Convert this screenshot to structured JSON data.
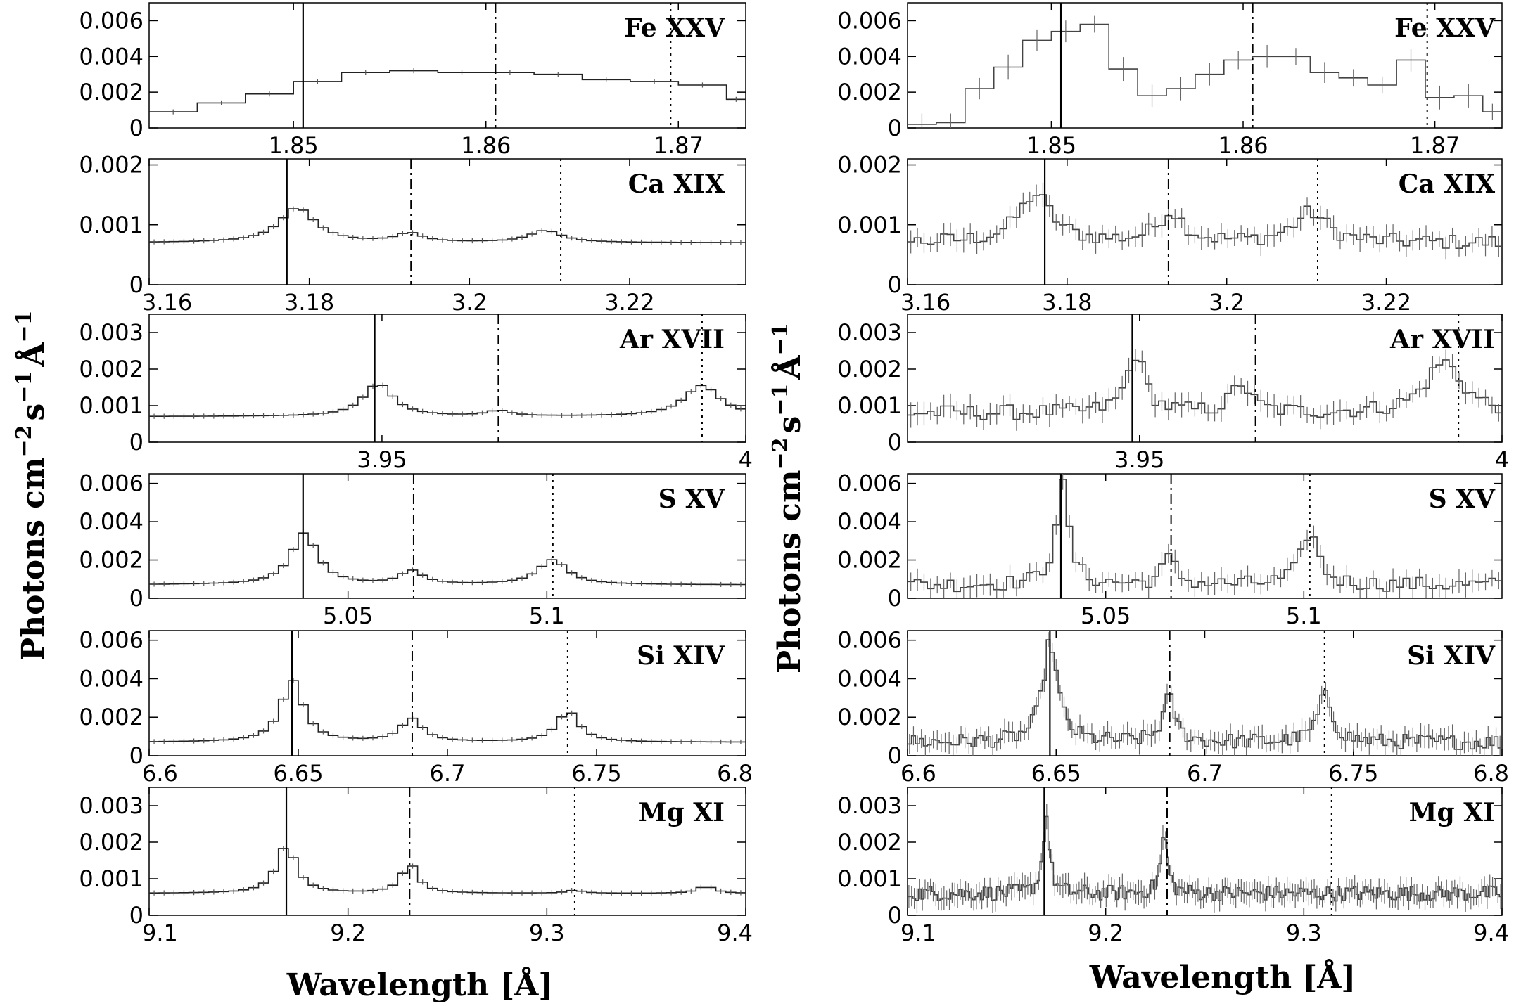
{
  "figure": {
    "ylabel_text": "Photons cm",
    "ylabel_exp1": "−2",
    "ylabel_s": "s",
    "ylabel_exp2": "−1",
    "ylabel_A": "Å",
    "ylabel_exp3": "−1",
    "xlabel": "Wavelength [Å]"
  },
  "chart_data": [
    {
      "column": "left",
      "type": "line",
      "style": "histogram",
      "ion": "Fe XXV",
      "xlim": [
        1.8425,
        1.8735
      ],
      "ylim": [
        0,
        0.007
      ],
      "yticks": [
        {
          "v": 0,
          "t": "0"
        },
        {
          "v": 0.002,
          "t": "0.002"
        },
        {
          "v": 0.004,
          "t": "0.004"
        },
        {
          "v": 0.006,
          "t": "0.006"
        }
      ],
      "xticks": [
        {
          "v": 1.85,
          "t": "1.85"
        },
        {
          "v": 1.86,
          "t": "1.86"
        },
        {
          "v": 1.87,
          "t": "1.87"
        }
      ],
      "xtick_pos": "below",
      "lines": {
        "solid": 1.8505,
        "dashdot": 1.8605,
        "dotted": 1.8696
      },
      "x": [
        1.8425,
        1.845,
        1.8475,
        1.85,
        1.8525,
        1.855,
        1.8575,
        1.86,
        1.8625,
        1.865,
        1.8675,
        1.87,
        1.8725
      ],
      "y": [
        0.0009,
        0.0014,
        0.0019,
        0.0026,
        0.0031,
        0.0032,
        0.0031,
        0.0031,
        0.003,
        0.0027,
        0.0026,
        0.0024,
        0.0016
      ],
      "noisy": false
    },
    {
      "column": "left",
      "type": "line",
      "style": "histogram",
      "ion": "Ca XIX",
      "xlim": [
        3.16,
        3.2345
      ],
      "ylim": [
        0,
        0.0021
      ],
      "yticks": [
        {
          "v": 0,
          "t": "0"
        },
        {
          "v": 0.001,
          "t": "0.001"
        },
        {
          "v": 0.002,
          "t": "0.002"
        }
      ],
      "xticks": [
        {
          "v": 3.16,
          "t": "3.16"
        },
        {
          "v": 3.18,
          "t": "3.18"
        },
        {
          "v": 3.2,
          "t": "3.2"
        },
        {
          "v": 3.22,
          "t": "3.22"
        }
      ],
      "xtick_pos": "below",
      "lines": {
        "solid": 3.1772,
        "dashdot": 3.1927,
        "dotted": 3.2114
      },
      "peaks": [
        {
          "c": 3.1785,
          "a": 0.00058,
          "w": 0.0055
        },
        {
          "c": 3.1925,
          "a": 0.00015,
          "w": 0.004
        },
        {
          "c": 3.2095,
          "a": 0.0002,
          "w": 0.005
        }
      ],
      "base": 0.0007,
      "noisy": false
    },
    {
      "column": "left",
      "type": "line",
      "style": "histogram",
      "ion": "Ar XVII",
      "xlim": [
        3.918,
        4.0
      ],
      "ylim": [
        0,
        0.0035
      ],
      "yticks": [
        {
          "v": 0,
          "t": "0"
        },
        {
          "v": 0.001,
          "t": "0.001"
        },
        {
          "v": 0.002,
          "t": "0.002"
        },
        {
          "v": 0.003,
          "t": "0.003"
        }
      ],
      "xticks": [
        {
          "v": 3.95,
          "t": "3.95"
        },
        {
          "v": 4.0,
          "t": "4"
        }
      ],
      "xtick_pos": "below",
      "lines": {
        "solid": 3.949,
        "dashdot": 3.966,
        "dotted": 3.994
      },
      "peaks": [
        {
          "c": 3.9495,
          "a": 0.0009,
          "w": 0.005
        },
        {
          "c": 3.966,
          "a": 0.00015,
          "w": 0.004
        },
        {
          "c": 3.994,
          "a": 0.00085,
          "w": 0.006
        }
      ],
      "base": 0.0007,
      "noisy": false
    },
    {
      "column": "left",
      "type": "line",
      "style": "histogram",
      "ion": "S XV",
      "xlim": [
        5.0,
        5.15
      ],
      "ylim": [
        0,
        0.0065
      ],
      "yticks": [
        {
          "v": 0,
          "t": "0"
        },
        {
          "v": 0.002,
          "t": "0.002"
        },
        {
          "v": 0.004,
          "t": "0.004"
        },
        {
          "v": 0.006,
          "t": "0.006"
        }
      ],
      "xticks": [
        {
          "v": 5.05,
          "t": "5.05"
        },
        {
          "v": 5.1,
          "t": "5.1"
        }
      ],
      "xtick_pos": "below",
      "lines": {
        "solid": 5.0387,
        "dashdot": 5.0665,
        "dotted": 5.1015
      },
      "peaks": [
        {
          "c": 5.039,
          "a": 0.0027,
          "w": 0.008
        },
        {
          "c": 5.066,
          "a": 0.0007,
          "w": 0.007
        },
        {
          "c": 5.1015,
          "a": 0.0013,
          "w": 0.009
        }
      ],
      "base": 0.0007,
      "noisy": false
    },
    {
      "column": "left",
      "type": "line",
      "style": "histogram",
      "ion": "Si XIV",
      "xlim": [
        6.6,
        6.8
      ],
      "ylim": [
        0,
        0.0065
      ],
      "yticks": [
        {
          "v": 0,
          "t": "0"
        },
        {
          "v": 0.002,
          "t": "0.002"
        },
        {
          "v": 0.004,
          "t": "0.004"
        },
        {
          "v": 0.006,
          "t": "0.006"
        }
      ],
      "xticks": [
        {
          "v": 6.6,
          "t": "6.6"
        },
        {
          "v": 6.65,
          "t": "6.65"
        },
        {
          "v": 6.7,
          "t": "6.7"
        },
        {
          "v": 6.75,
          "t": "6.75"
        },
        {
          "v": 6.8,
          "t": "6.8"
        }
      ],
      "xtick_pos": "below",
      "lines": {
        "solid": 6.6479,
        "dashdot": 6.6882,
        "dotted": 6.7403
      },
      "peaks": [
        {
          "c": 6.648,
          "a": 0.0032,
          "w": 0.009
        },
        {
          "c": 6.688,
          "a": 0.0012,
          "w": 0.009
        },
        {
          "c": 6.7405,
          "a": 0.0016,
          "w": 0.009
        }
      ],
      "base": 0.0007,
      "noisy": false
    },
    {
      "column": "left",
      "type": "line",
      "style": "histogram",
      "ion": "Mg XI",
      "xlim": [
        9.1,
        9.4
      ],
      "ylim": [
        0,
        0.0035
      ],
      "yticks": [
        {
          "v": 0,
          "t": "0"
        },
        {
          "v": 0.001,
          "t": "0.001"
        },
        {
          "v": 0.002,
          "t": "0.002"
        },
        {
          "v": 0.003,
          "t": "0.003"
        }
      ],
      "xticks": [
        {
          "v": 9.1,
          "t": "9.1"
        },
        {
          "v": 9.2,
          "t": "9.2"
        },
        {
          "v": 9.3,
          "t": "9.3"
        },
        {
          "v": 9.4,
          "t": "9.4"
        }
      ],
      "xtick_pos": "below",
      "lines": {
        "solid": 9.169,
        "dashdot": 9.231,
        "dotted": 9.314
      },
      "peaks": [
        {
          "c": 9.169,
          "a": 0.0013,
          "w": 0.012
        },
        {
          "c": 9.231,
          "a": 0.0008,
          "w": 0.01
        },
        {
          "c": 9.314,
          "a": 8e-05,
          "w": 0.01
        },
        {
          "c": 9.38,
          "a": 0.0002,
          "w": 0.01
        }
      ],
      "base": 0.0006,
      "noisy": false
    },
    {
      "column": "right",
      "type": "line",
      "style": "histogram",
      "ion": "Fe XXV",
      "xlim": [
        1.8425,
        1.8735
      ],
      "ylim": [
        0,
        0.007
      ],
      "yticks": [
        {
          "v": 0,
          "t": "0"
        },
        {
          "v": 0.002,
          "t": "0.002"
        },
        {
          "v": 0.004,
          "t": "0.004"
        },
        {
          "v": 0.006,
          "t": "0.006"
        }
      ],
      "xticks": [
        {
          "v": 1.85,
          "t": "1.85"
        },
        {
          "v": 1.86,
          "t": "1.86"
        },
        {
          "v": 1.87,
          "t": "1.87"
        }
      ],
      "xtick_pos": "below",
      "lines": {
        "solid": 1.8505,
        "dashdot": 1.8605,
        "dotted": 1.8696
      },
      "x": [
        1.8425,
        1.844,
        1.8455,
        1.847,
        1.8485,
        1.85,
        1.8515,
        1.853,
        1.8545,
        1.856,
        1.8575,
        1.859,
        1.8605,
        1.862,
        1.8635,
        1.865,
        1.8665,
        1.868,
        1.8695,
        1.871,
        1.8725
      ],
      "y": [
        0.0002,
        0.0003,
        0.0022,
        0.0034,
        0.0049,
        0.0054,
        0.0058,
        0.0033,
        0.0018,
        0.0022,
        0.003,
        0.0038,
        0.004,
        0.004,
        0.0031,
        0.0028,
        0.0024,
        0.0038,
        0.0017,
        0.0018,
        0.0009
      ],
      "noisy": true
    },
    {
      "column": "right",
      "type": "line",
      "style": "histogram",
      "ion": "Ca XIX",
      "xlim": [
        3.16,
        3.2345
      ],
      "ylim": [
        0,
        0.0021
      ],
      "yticks": [
        {
          "v": 0,
          "t": "0"
        },
        {
          "v": 0.001,
          "t": "0.001"
        },
        {
          "v": 0.002,
          "t": "0.002"
        }
      ],
      "xticks": [
        {
          "v": 3.16,
          "t": "3.16"
        },
        {
          "v": 3.18,
          "t": "3.18"
        },
        {
          "v": 3.2,
          "t": "3.2"
        },
        {
          "v": 3.22,
          "t": "3.22"
        }
      ],
      "xtick_pos": "below",
      "lines": {
        "solid": 3.1772,
        "dashdot": 3.1927,
        "dotted": 3.2114
      },
      "peaks": [
        {
          "c": 3.176,
          "a": 0.0008,
          "w": 0.005
        },
        {
          "c": 3.193,
          "a": 0.0005,
          "w": 0.004
        },
        {
          "c": 3.2105,
          "a": 0.0005,
          "w": 0.005
        }
      ],
      "base": 0.0007,
      "noisy": true
    },
    {
      "column": "right",
      "type": "line",
      "style": "histogram",
      "ion": "Ar XVII",
      "xlim": [
        3.918,
        4.0
      ],
      "ylim": [
        0,
        0.0035
      ],
      "yticks": [
        {
          "v": 0,
          "t": "0"
        },
        {
          "v": 0.001,
          "t": "0.001"
        },
        {
          "v": 0.002,
          "t": "0.002"
        },
        {
          "v": 0.003,
          "t": "0.003"
        }
      ],
      "xticks": [
        {
          "v": 3.95,
          "t": "3.95"
        },
        {
          "v": 4.0,
          "t": "4"
        }
      ],
      "xtick_pos": "below",
      "lines": {
        "solid": 3.949,
        "dashdot": 3.966,
        "dotted": 3.994
      },
      "peaks": [
        {
          "c": 3.9495,
          "a": 0.0016,
          "w": 0.003
        },
        {
          "c": 3.964,
          "a": 0.0008,
          "w": 0.003
        },
        {
          "c": 3.992,
          "a": 0.0014,
          "w": 0.006
        }
      ],
      "base": 0.0008,
      "noisy": true
    },
    {
      "column": "right",
      "type": "line",
      "style": "histogram",
      "ion": "S XV",
      "xlim": [
        5.0,
        5.15
      ],
      "ylim": [
        0,
        0.0065
      ],
      "yticks": [
        {
          "v": 0,
          "t": "0"
        },
        {
          "v": 0.002,
          "t": "0.002"
        },
        {
          "v": 0.004,
          "t": "0.004"
        },
        {
          "v": 0.006,
          "t": "0.006"
        }
      ],
      "xticks": [
        {
          "v": 5.05,
          "t": "5.05"
        },
        {
          "v": 5.1,
          "t": "5.1"
        }
      ],
      "xtick_pos": "below",
      "lines": {
        "solid": 5.0387,
        "dashdot": 5.0665,
        "dotted": 5.1015
      },
      "peaks": [
        {
          "c": 5.039,
          "a": 0.0052,
          "w": 0.004
        },
        {
          "c": 5.066,
          "a": 0.0014,
          "w": 0.004
        },
        {
          "c": 5.1015,
          "a": 0.0028,
          "w": 0.005
        }
      ],
      "base": 0.0007,
      "noisy": true
    },
    {
      "column": "right",
      "type": "line",
      "style": "histogram",
      "ion": "Si XIV",
      "xlim": [
        6.6,
        6.8
      ],
      "ylim": [
        0,
        0.0065
      ],
      "yticks": [
        {
          "v": 0,
          "t": "0"
        },
        {
          "v": 0.002,
          "t": "0.002"
        },
        {
          "v": 0.004,
          "t": "0.004"
        },
        {
          "v": 0.006,
          "t": "0.006"
        }
      ],
      "xticks": [
        {
          "v": 6.6,
          "t": "6.6"
        },
        {
          "v": 6.65,
          "t": "6.65"
        },
        {
          "v": 6.7,
          "t": "6.7"
        },
        {
          "v": 6.75,
          "t": "6.75"
        },
        {
          "v": 6.8,
          "t": "6.8"
        }
      ],
      "xtick_pos": "below",
      "lines": {
        "solid": 6.6479,
        "dashdot": 6.6882,
        "dotted": 6.7403
      },
      "peaks": [
        {
          "c": 6.648,
          "a": 0.0052,
          "w": 0.006
        },
        {
          "c": 6.688,
          "a": 0.0023,
          "w": 0.005
        },
        {
          "c": 6.7405,
          "a": 0.0024,
          "w": 0.006
        }
      ],
      "base": 0.0007,
      "noisy": true
    },
    {
      "column": "right",
      "type": "line",
      "style": "histogram",
      "ion": "Mg XI",
      "xlim": [
        9.1,
        9.4
      ],
      "ylim": [
        0,
        0.0035
      ],
      "yticks": [
        {
          "v": 0,
          "t": "0"
        },
        {
          "v": 0.001,
          "t": "0.001"
        },
        {
          "v": 0.002,
          "t": "0.002"
        },
        {
          "v": 0.003,
          "t": "0.003"
        }
      ],
      "xticks": [
        {
          "v": 9.1,
          "t": "9.1"
        },
        {
          "v": 9.2,
          "t": "9.2"
        },
        {
          "v": 9.3,
          "t": "9.3"
        },
        {
          "v": 9.4,
          "t": "9.4"
        }
      ],
      "xtick_pos": "below",
      "lines": {
        "solid": 9.169,
        "dashdot": 9.231,
        "dotted": 9.314
      },
      "peaks": [
        {
          "c": 9.17,
          "a": 0.0021,
          "w": 0.004
        },
        {
          "c": 9.2295,
          "a": 0.0016,
          "w": 0.004
        }
      ],
      "base": 0.0006,
      "noisy": true
    }
  ]
}
